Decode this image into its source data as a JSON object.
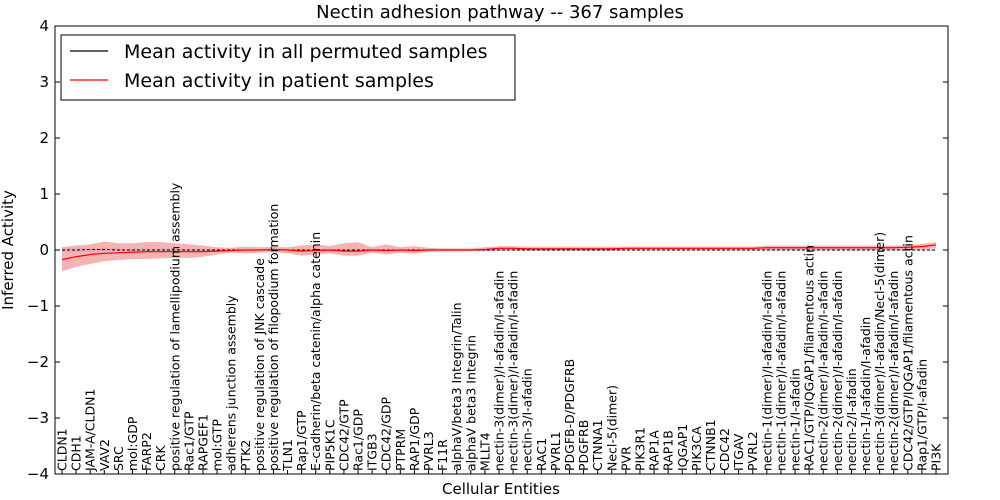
{
  "chart_data": {
    "type": "line",
    "title": "Nectin adhesion pathway -- 367 samples",
    "xlabel": "Cellular Entities",
    "ylabel": "Inferred Activity",
    "ylim": [
      -4,
      4
    ],
    "yticks": [
      -4,
      -3,
      -2,
      -1,
      0,
      1,
      2,
      3,
      4
    ],
    "ytick_labels": [
      "−4",
      "−3",
      "−2",
      "−1",
      "0",
      "1",
      "2",
      "3",
      "4"
    ],
    "legend_position": "top-left",
    "categories": [
      "CLDN1",
      "CDH1",
      "JAM-A/CLDN1",
      "VAV2",
      "SRC",
      "mol:GDP",
      "FARP2",
      "CRK",
      "positive regulation of lamellipodium assembly",
      "Rac1/GTP",
      "RAPGEF1",
      "mol:GTP",
      "adherens junction assembly",
      "PTK2",
      "positive regulation of JNK cascade",
      "positive regulation of filopodium formation",
      "TLN1",
      "Rap1/GTP",
      "E-cadherin/beta catenin/alpha catenin",
      "PIP5K1C",
      "CDC42/GTP",
      "Rac1/GDP",
      "ITGB3",
      "CDC42/GDP",
      "PTPRM",
      "RAP1/GDP",
      "PVRL3",
      "F11R",
      "alphaV/beta3 Integrin/Talin",
      "alphaV beta3 Integrin",
      "MLLT4",
      "nectin-3(dimer)/I-afadin/I-afadin",
      "nectin-3(dimer)/I-afadin/I-afadin",
      "nectin-3/I-afadin",
      "RAC1",
      "PVRL1",
      "PDGFB-D/PDGFRB",
      "PDGFRB",
      "CTNNA1",
      "Necl-5(dimer)",
      "PVR",
      "PIK3R1",
      "RAP1A",
      "RAP1B",
      "IQGAP1",
      "PIK3CA",
      "CTNNB1",
      "CDC42",
      "ITGAV",
      "PVRL2",
      "nectin-1(dimer)/I-afadin/I-afadin",
      "nectin-1(dimer)/I-afadin/I-afadin",
      "nectin-1/I-afadin",
      "RAC1/GTP/IQGAP1/filamentous actin",
      "nectin-2(dimer)/I-afadin/I-afadin",
      "nectin-2(dimer)/I-afadin/I-afadin",
      "nectin-2/I-afadin",
      "nectin-1/I-afadin/I-afadin",
      "nectin-3(dimer)/I-afadin/Necl-5(dimer)",
      "nectin-2(dimer)/I-afadin/I-afadin",
      "CDC42/GTP/IQGAP1/filamentous actin",
      "Rap1/GTP/I-afadin",
      "PI3K"
    ],
    "series": [
      {
        "name": "Mean activity in all permuted samples",
        "color": "#000000",
        "values": [
          0.0,
          0.0,
          0.01,
          0.01,
          0.0,
          0.0,
          0.0,
          0.0,
          0.0,
          0.0,
          0.0,
          0.0,
          0.0,
          0.0,
          0.0,
          0.0,
          0.0,
          0.0,
          0.0,
          0.0,
          0.0,
          0.0,
          0.0,
          0.0,
          0.0,
          0.0,
          0.0,
          0.0,
          0.0,
          0.0,
          0.0,
          0.0,
          0.0,
          0.0,
          0.0,
          0.0,
          0.0,
          0.0,
          0.0,
          0.0,
          0.0,
          0.0,
          0.0,
          0.0,
          0.0,
          0.0,
          0.0,
          0.0,
          0.0,
          0.0,
          0.0,
          0.0,
          0.0,
          0.0,
          0.0,
          0.0,
          0.0,
          0.0,
          0.0,
          0.0,
          0.0,
          0.0,
          0.0
        ],
        "band_lower": [
          -0.04,
          -0.04,
          -0.03,
          -0.03,
          -0.03,
          -0.03,
          -0.03,
          -0.03,
          -0.02,
          -0.02,
          -0.02,
          -0.02,
          -0.02,
          -0.02,
          -0.02,
          -0.02,
          -0.02,
          -0.02,
          -0.02,
          -0.02,
          -0.02,
          -0.02,
          -0.02,
          -0.02,
          -0.02,
          -0.02,
          -0.02,
          -0.02,
          -0.02,
          -0.02,
          -0.02,
          -0.02,
          -0.02,
          -0.02,
          -0.02,
          -0.02,
          -0.02,
          -0.02,
          -0.02,
          -0.02,
          -0.02,
          -0.02,
          -0.02,
          -0.02,
          -0.02,
          -0.02,
          -0.02,
          -0.02,
          -0.02,
          -0.02,
          -0.02,
          -0.02,
          -0.02,
          -0.02,
          -0.02,
          -0.02,
          -0.02,
          -0.02,
          -0.02,
          -0.02,
          -0.02,
          -0.02,
          -0.02
        ],
        "band_upper": [
          0.04,
          0.04,
          0.05,
          0.05,
          0.03,
          0.03,
          0.03,
          0.03,
          0.02,
          0.02,
          0.02,
          0.02,
          0.02,
          0.02,
          0.02,
          0.02,
          0.02,
          0.02,
          0.02,
          0.02,
          0.02,
          0.02,
          0.02,
          0.02,
          0.02,
          0.02,
          0.02,
          0.02,
          0.02,
          0.02,
          0.02,
          0.02,
          0.02,
          0.02,
          0.02,
          0.02,
          0.02,
          0.02,
          0.02,
          0.02,
          0.02,
          0.02,
          0.02,
          0.02,
          0.02,
          0.02,
          0.02,
          0.02,
          0.02,
          0.02,
          0.02,
          0.02,
          0.02,
          0.02,
          0.02,
          0.02,
          0.02,
          0.02,
          0.02,
          0.02,
          0.02,
          0.02,
          0.02
        ]
      },
      {
        "name": "Mean activity in patient samples",
        "color": "#ff0000",
        "values": [
          -0.17,
          -0.12,
          -0.08,
          -0.06,
          -0.05,
          -0.04,
          -0.03,
          -0.03,
          -0.03,
          -0.03,
          -0.03,
          -0.02,
          -0.01,
          0.0,
          0.0,
          0.01,
          0.0,
          -0.02,
          -0.01,
          0.0,
          -0.02,
          -0.02,
          0.0,
          -0.01,
          0.0,
          -0.01,
          0.0,
          0.0,
          0.0,
          0.0,
          0.01,
          0.03,
          0.03,
          0.02,
          0.02,
          0.02,
          0.02,
          0.02,
          0.02,
          0.02,
          0.03,
          0.03,
          0.03,
          0.03,
          0.03,
          0.03,
          0.03,
          0.03,
          0.03,
          0.03,
          0.04,
          0.04,
          0.04,
          0.04,
          0.04,
          0.04,
          0.04,
          0.04,
          0.04,
          0.04,
          0.05,
          0.06,
          0.09
        ],
        "band_lower": [
          -0.38,
          -0.3,
          -0.25,
          -0.2,
          -0.18,
          -0.16,
          -0.16,
          -0.15,
          -0.14,
          -0.14,
          -0.12,
          -0.08,
          -0.05,
          -0.06,
          -0.05,
          -0.04,
          -0.06,
          -0.1,
          -0.08,
          -0.06,
          -0.1,
          -0.1,
          -0.05,
          -0.08,
          -0.05,
          -0.07,
          -0.03,
          -0.02,
          -0.02,
          -0.02,
          -0.02,
          -0.01,
          -0.01,
          -0.01,
          -0.01,
          -0.01,
          -0.01,
          -0.01,
          -0.01,
          -0.01,
          0.0,
          0.0,
          0.0,
          0.0,
          0.0,
          0.0,
          0.0,
          0.0,
          0.0,
          0.0,
          0.0,
          0.0,
          0.0,
          0.0,
          0.0,
          0.0,
          0.0,
          0.0,
          0.0,
          0.0,
          0.0,
          0.01,
          0.03
        ],
        "band_upper": [
          0.05,
          0.08,
          0.1,
          0.15,
          0.12,
          0.12,
          0.14,
          0.14,
          0.12,
          0.1,
          0.08,
          0.05,
          0.04,
          0.06,
          0.05,
          0.06,
          0.05,
          0.08,
          0.1,
          0.07,
          0.12,
          0.14,
          0.05,
          0.1,
          0.05,
          0.07,
          0.04,
          0.03,
          0.03,
          0.03,
          0.05,
          0.07,
          0.07,
          0.06,
          0.06,
          0.06,
          0.06,
          0.06,
          0.06,
          0.06,
          0.06,
          0.06,
          0.06,
          0.06,
          0.06,
          0.06,
          0.06,
          0.06,
          0.06,
          0.06,
          0.08,
          0.08,
          0.08,
          0.08,
          0.08,
          0.08,
          0.08,
          0.08,
          0.08,
          0.08,
          0.09,
          0.11,
          0.14
        ]
      }
    ]
  }
}
